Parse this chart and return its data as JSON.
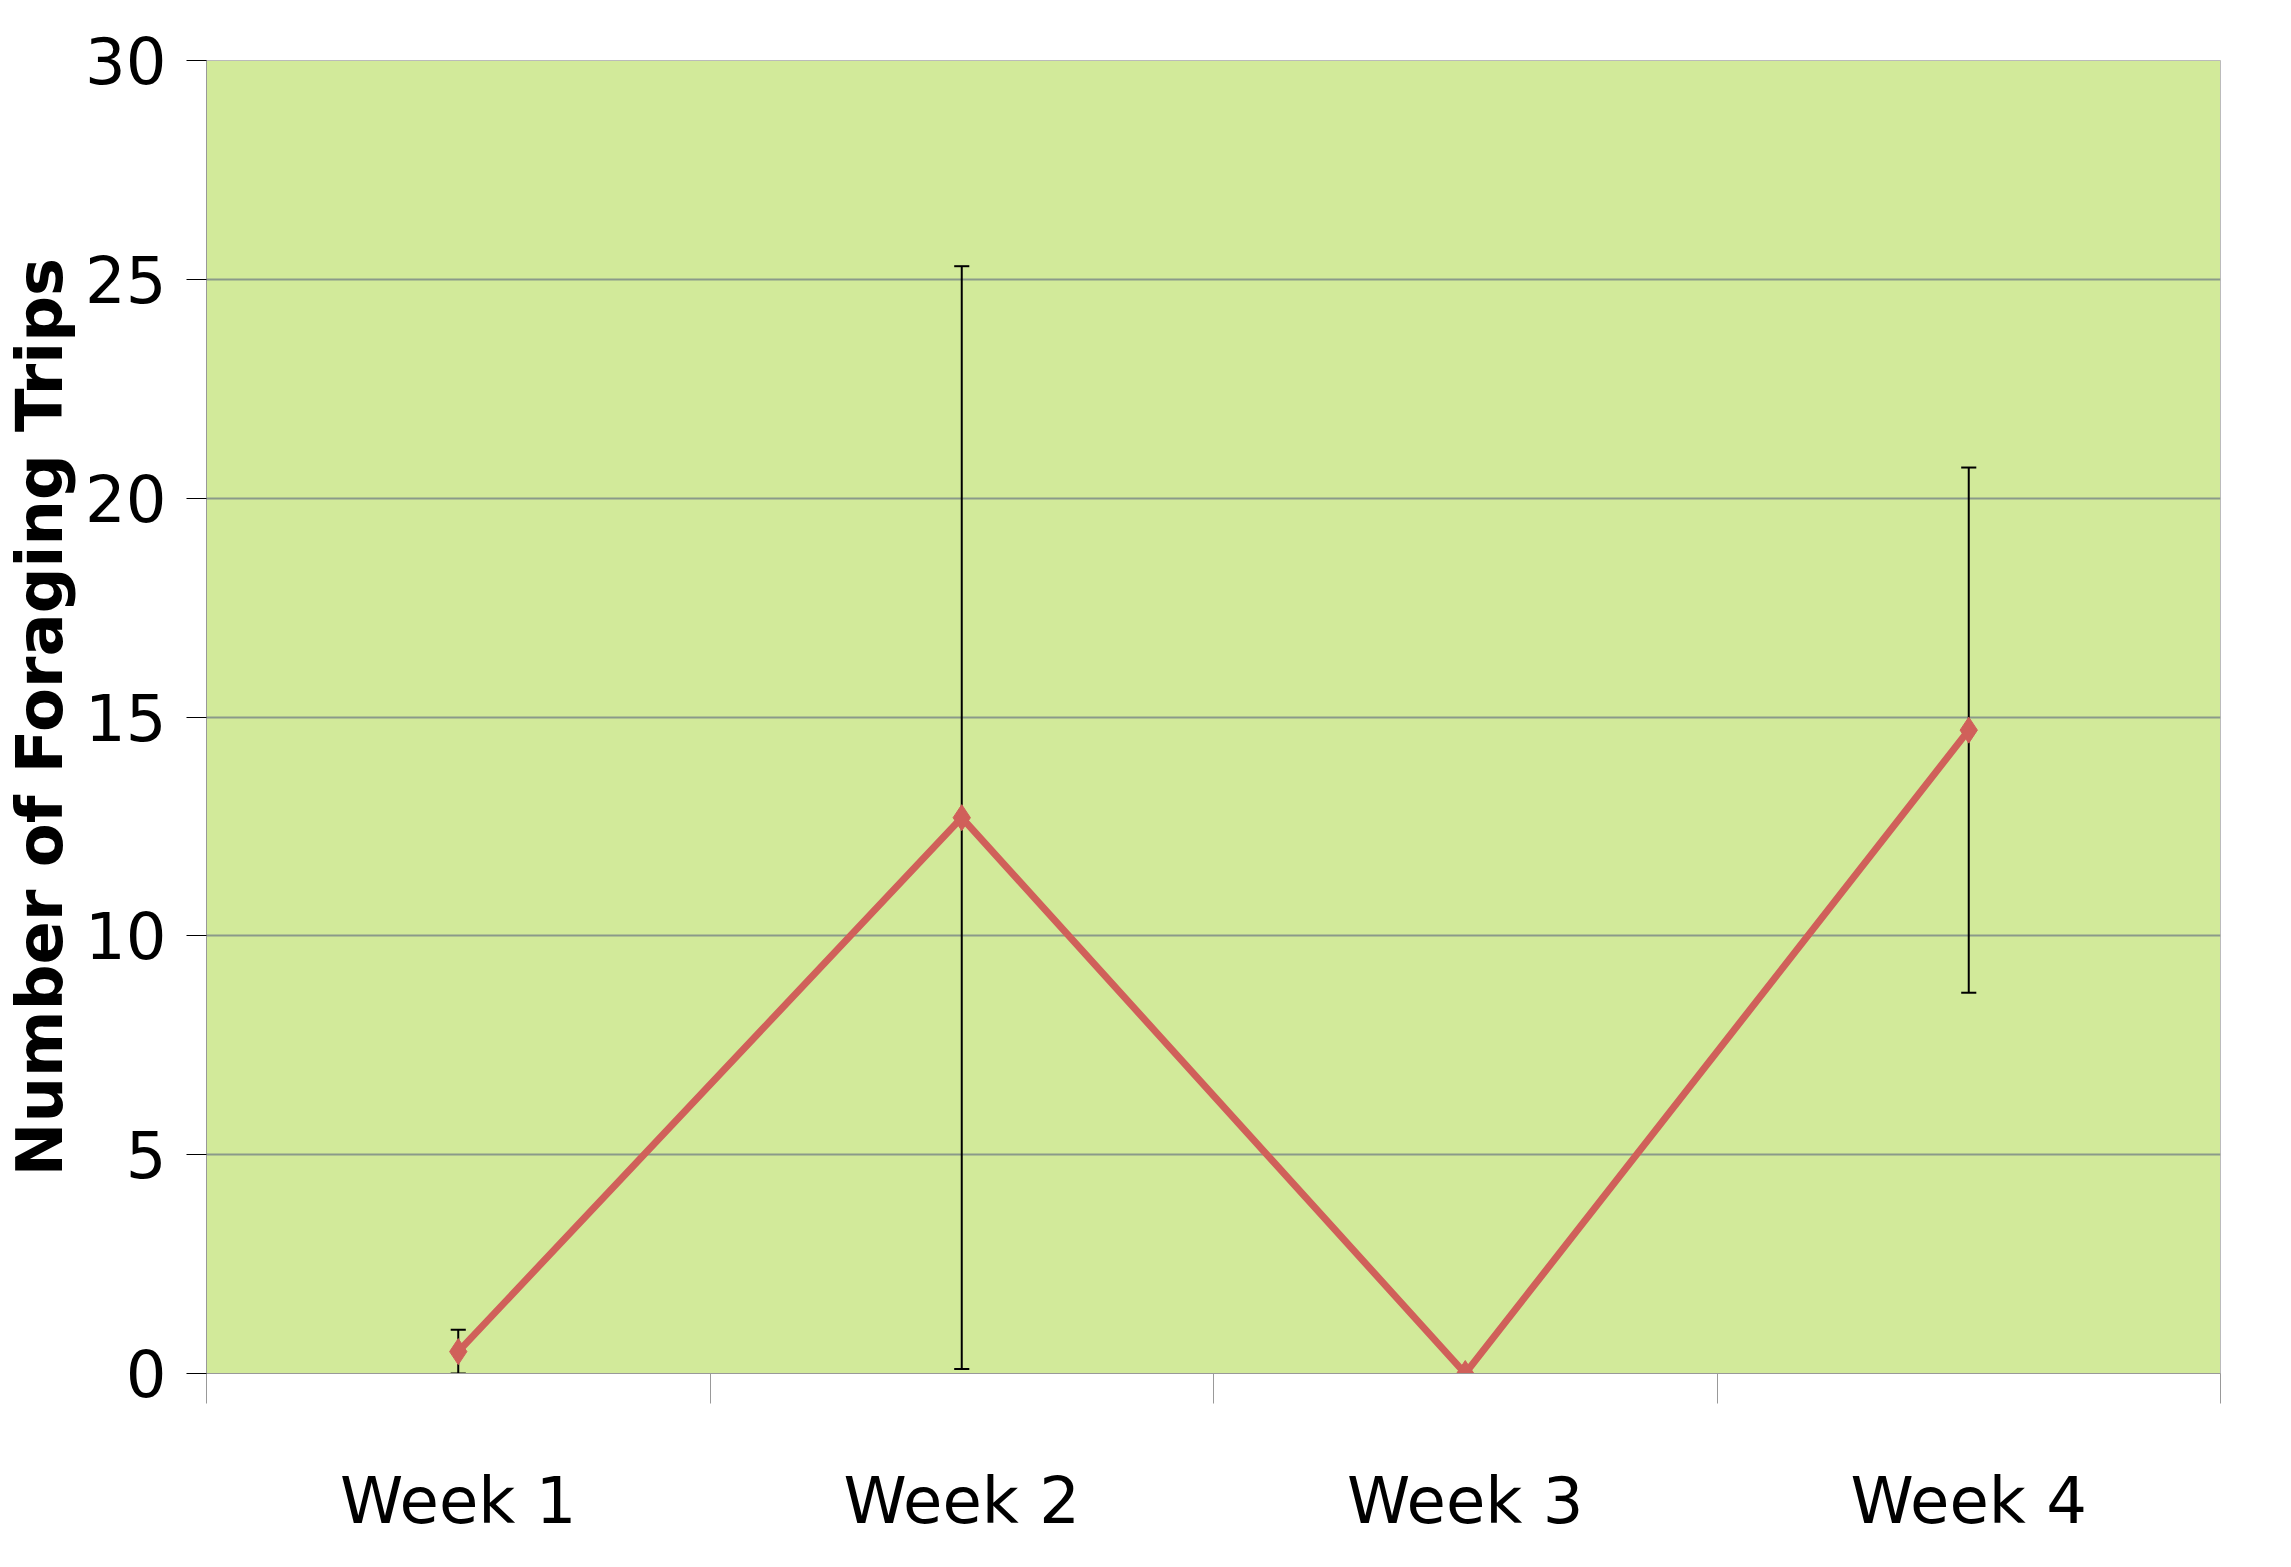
{
  "chart_data": {
    "type": "line",
    "ylabel": "Number of Foraging Trips",
    "categories": [
      "Week 1",
      "Week 2",
      "Week 3",
      "Week 4"
    ],
    "series": [
      {
        "color": "#d0605a",
        "values": [
          0.5,
          12.7,
          0,
          14.7
        ],
        "errors": [
          0.5,
          12.6,
          null,
          6.0
        ]
      }
    ],
    "ylim": [
      0,
      30
    ],
    "yticks": [
      0,
      5,
      10,
      15,
      20,
      25,
      30
    ],
    "grid": "y",
    "marker": "diamond",
    "line_style": "solid"
  }
}
